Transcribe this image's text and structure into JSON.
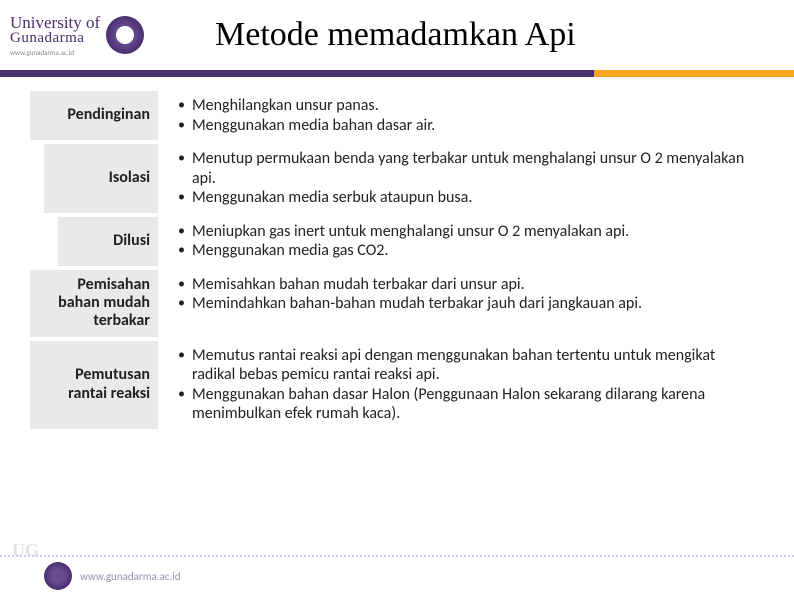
{
  "header": {
    "logo_upper": "University of",
    "logo_lower": "Gunadarma",
    "logo_sub": "www.gunadarma.ac.id",
    "title": "Metode memadamkan Api"
  },
  "colors": {
    "brand": "#4a2f6f",
    "accent": "#f7a823",
    "label_bg": "#e9e9e9",
    "text": "#222222"
  },
  "rows": [
    {
      "label": "Pendinginan",
      "indent": 0,
      "points": [
        "Menghilangkan unsur panas.",
        "Menggunakan media bahan dasar air."
      ]
    },
    {
      "label": "Isolasi",
      "indent": 1,
      "points": [
        "Menutup permukaan benda yang terbakar untuk menghalangi unsur O 2 menyalakan api.",
        "Menggunakan media serbuk ataupun busa."
      ]
    },
    {
      "label": "Dilusi",
      "indent": 2,
      "points": [
        "Meniupkan gas inert untuk menghalangi unsur O 2 menyalakan api.",
        "Menggunakan media gas CO2."
      ]
    },
    {
      "label": "Pemisahan bahan mudah terbakar",
      "indent": 0,
      "points": [
        "Memisahkan bahan mudah terbakar dari unsur api.",
        "Memindahkan bahan-bahan mudah terbakar jauh dari jangkauan api."
      ]
    },
    {
      "label": "Pemutusan rantai reaksi",
      "indent": 0,
      "points": [
        "Memutus rantai reaksi api dengan menggunakan bahan tertentu untuk mengikat radikal bebas pemicu rantai reaksi api.",
        "Menggunakan bahan dasar Halon (Penggunaan Halon sekarang dilarang karena menimbulkan efek rumah kaca)."
      ]
    }
  ],
  "footer": {
    "faint": "UG",
    "url": "www.gunadarma.ac.id"
  }
}
